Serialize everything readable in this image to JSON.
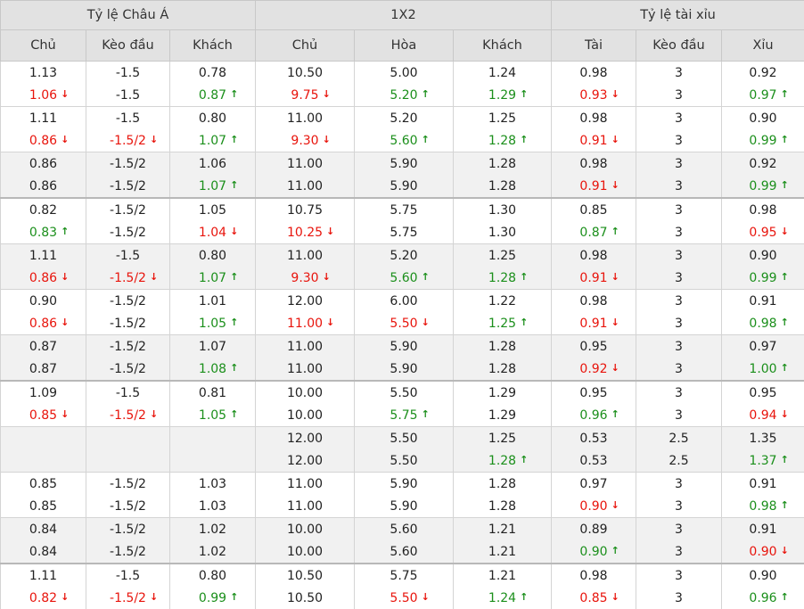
{
  "headers": {
    "groups": [
      "Tỷ lệ Châu Á",
      "1X2",
      "Tỷ lệ tài xỉu"
    ],
    "columns": [
      "Chủ",
      "Kèo đầu",
      "Khách",
      "Chủ",
      "Hòa",
      "Khách",
      "Tài",
      "Kèo đầu",
      "Xỉu"
    ]
  },
  "colors": {
    "red": "#e8140c",
    "green": "#1b8f1b",
    "up_icon": "arrow-up-icon",
    "down_icon": "arrow-down-icon"
  },
  "rows": [
    {
      "shade": false,
      "thick": false,
      "cells": [
        [
          {
            "t": "1.13"
          },
          {
            "t": "1.06",
            "a": "d"
          }
        ],
        [
          {
            "t": "-1.5"
          },
          {
            "t": "-1.5"
          }
        ],
        [
          {
            "t": "0.78"
          },
          {
            "t": "0.87",
            "a": "u"
          }
        ],
        [
          {
            "t": "10.50"
          },
          {
            "t": "9.75",
            "a": "d"
          }
        ],
        [
          {
            "t": "5.00"
          },
          {
            "t": "5.20",
            "a": "u"
          }
        ],
        [
          {
            "t": "1.24"
          },
          {
            "t": "1.29",
            "a": "u"
          }
        ],
        [
          {
            "t": "0.98"
          },
          {
            "t": "0.93",
            "a": "d"
          }
        ],
        [
          {
            "t": "3"
          },
          {
            "t": "3"
          }
        ],
        [
          {
            "t": "0.92"
          },
          {
            "t": "0.97",
            "a": "u"
          }
        ]
      ]
    },
    {
      "shade": false,
      "thick": false,
      "cells": [
        [
          {
            "t": "1.11"
          },
          {
            "t": "0.86",
            "a": "d"
          }
        ],
        [
          {
            "t": "-1.5"
          },
          {
            "t": "-1.5/2",
            "a": "d"
          }
        ],
        [
          {
            "t": "0.80"
          },
          {
            "t": "1.07",
            "a": "u"
          }
        ],
        [
          {
            "t": "11.00"
          },
          {
            "t": "9.30",
            "a": "d"
          }
        ],
        [
          {
            "t": "5.20"
          },
          {
            "t": "5.60",
            "a": "u"
          }
        ],
        [
          {
            "t": "1.25"
          },
          {
            "t": "1.28",
            "a": "u"
          }
        ],
        [
          {
            "t": "0.98"
          },
          {
            "t": "0.91",
            "a": "d"
          }
        ],
        [
          {
            "t": "3"
          },
          {
            "t": "3"
          }
        ],
        [
          {
            "t": "0.90"
          },
          {
            "t": "0.99",
            "a": "u"
          }
        ]
      ]
    },
    {
      "shade": true,
      "thick": false,
      "cells": [
        [
          {
            "t": "0.86"
          },
          {
            "t": "0.86"
          }
        ],
        [
          {
            "t": "-1.5/2"
          },
          {
            "t": "-1.5/2"
          }
        ],
        [
          {
            "t": "1.06"
          },
          {
            "t": "1.07",
            "a": "u"
          }
        ],
        [
          {
            "t": "11.00"
          },
          {
            "t": "11.00"
          }
        ],
        [
          {
            "t": "5.90"
          },
          {
            "t": "5.90"
          }
        ],
        [
          {
            "t": "1.28"
          },
          {
            "t": "1.28"
          }
        ],
        [
          {
            "t": "0.98"
          },
          {
            "t": "0.91",
            "a": "d"
          }
        ],
        [
          {
            "t": "3"
          },
          {
            "t": "3"
          }
        ],
        [
          {
            "t": "0.92"
          },
          {
            "t": "0.99",
            "a": "u"
          }
        ]
      ]
    },
    {
      "shade": false,
      "thick": true,
      "cells": [
        [
          {
            "t": "0.82"
          },
          {
            "t": "0.83",
            "a": "u"
          }
        ],
        [
          {
            "t": "-1.5/2"
          },
          {
            "t": "-1.5/2"
          }
        ],
        [
          {
            "t": "1.05"
          },
          {
            "t": "1.04",
            "a": "d"
          }
        ],
        [
          {
            "t": "10.75"
          },
          {
            "t": "10.25",
            "a": "d"
          }
        ],
        [
          {
            "t": "5.75"
          },
          {
            "t": "5.75"
          }
        ],
        [
          {
            "t": "1.30"
          },
          {
            "t": "1.30"
          }
        ],
        [
          {
            "t": "0.85"
          },
          {
            "t": "0.87",
            "a": "u"
          }
        ],
        [
          {
            "t": "3"
          },
          {
            "t": "3"
          }
        ],
        [
          {
            "t": "0.98"
          },
          {
            "t": "0.95",
            "a": "d"
          }
        ]
      ]
    },
    {
      "shade": true,
      "thick": false,
      "cells": [
        [
          {
            "t": "1.11"
          },
          {
            "t": "0.86",
            "a": "d"
          }
        ],
        [
          {
            "t": "-1.5"
          },
          {
            "t": "-1.5/2",
            "a": "d"
          }
        ],
        [
          {
            "t": "0.80"
          },
          {
            "t": "1.07",
            "a": "u"
          }
        ],
        [
          {
            "t": "11.00"
          },
          {
            "t": "9.30",
            "a": "d"
          }
        ],
        [
          {
            "t": "5.20"
          },
          {
            "t": "5.60",
            "a": "u"
          }
        ],
        [
          {
            "t": "1.25"
          },
          {
            "t": "1.28",
            "a": "u"
          }
        ],
        [
          {
            "t": "0.98"
          },
          {
            "t": "0.91",
            "a": "d"
          }
        ],
        [
          {
            "t": "3"
          },
          {
            "t": "3"
          }
        ],
        [
          {
            "t": "0.90"
          },
          {
            "t": "0.99",
            "a": "u"
          }
        ]
      ]
    },
    {
      "shade": false,
      "thick": false,
      "cells": [
        [
          {
            "t": "0.90"
          },
          {
            "t": "0.86",
            "a": "d"
          }
        ],
        [
          {
            "t": "-1.5/2"
          },
          {
            "t": "-1.5/2"
          }
        ],
        [
          {
            "t": "1.01"
          },
          {
            "t": "1.05",
            "a": "u"
          }
        ],
        [
          {
            "t": "12.00"
          },
          {
            "t": "11.00",
            "a": "d"
          }
        ],
        [
          {
            "t": "6.00"
          },
          {
            "t": "5.50",
            "a": "d"
          }
        ],
        [
          {
            "t": "1.22"
          },
          {
            "t": "1.25",
            "a": "u"
          }
        ],
        [
          {
            "t": "0.98"
          },
          {
            "t": "0.91",
            "a": "d"
          }
        ],
        [
          {
            "t": "3"
          },
          {
            "t": "3"
          }
        ],
        [
          {
            "t": "0.91"
          },
          {
            "t": "0.98",
            "a": "u"
          }
        ]
      ]
    },
    {
      "shade": true,
      "thick": false,
      "cells": [
        [
          {
            "t": "0.87"
          },
          {
            "t": "0.87"
          }
        ],
        [
          {
            "t": "-1.5/2"
          },
          {
            "t": "-1.5/2"
          }
        ],
        [
          {
            "t": "1.07"
          },
          {
            "t": "1.08",
            "a": "u"
          }
        ],
        [
          {
            "t": "11.00"
          },
          {
            "t": "11.00"
          }
        ],
        [
          {
            "t": "5.90"
          },
          {
            "t": "5.90"
          }
        ],
        [
          {
            "t": "1.28"
          },
          {
            "t": "1.28"
          }
        ],
        [
          {
            "t": "0.95"
          },
          {
            "t": "0.92",
            "a": "d"
          }
        ],
        [
          {
            "t": "3"
          },
          {
            "t": "3"
          }
        ],
        [
          {
            "t": "0.97"
          },
          {
            "t": "1.00",
            "a": "u"
          }
        ]
      ]
    },
    {
      "shade": false,
      "thick": true,
      "cells": [
        [
          {
            "t": "1.09"
          },
          {
            "t": "0.85",
            "a": "d"
          }
        ],
        [
          {
            "t": "-1.5"
          },
          {
            "t": "-1.5/2",
            "a": "d"
          }
        ],
        [
          {
            "t": "0.81"
          },
          {
            "t": "1.05",
            "a": "u"
          }
        ],
        [
          {
            "t": "10.00"
          },
          {
            "t": "10.00"
          }
        ],
        [
          {
            "t": "5.50"
          },
          {
            "t": "5.75",
            "a": "u"
          }
        ],
        [
          {
            "t": "1.29"
          },
          {
            "t": "1.29"
          }
        ],
        [
          {
            "t": "0.95"
          },
          {
            "t": "0.96",
            "a": "u"
          }
        ],
        [
          {
            "t": "3"
          },
          {
            "t": "3"
          }
        ],
        [
          {
            "t": "0.95"
          },
          {
            "t": "0.94",
            "a": "d"
          }
        ]
      ]
    },
    {
      "shade": true,
      "thick": false,
      "cells": [
        [
          {
            "t": ""
          },
          {
            "t": ""
          }
        ],
        [
          {
            "t": ""
          },
          {
            "t": ""
          }
        ],
        [
          {
            "t": ""
          },
          {
            "t": ""
          }
        ],
        [
          {
            "t": "12.00"
          },
          {
            "t": "12.00"
          }
        ],
        [
          {
            "t": "5.50"
          },
          {
            "t": "5.50"
          }
        ],
        [
          {
            "t": "1.25"
          },
          {
            "t": "1.28",
            "a": "u"
          }
        ],
        [
          {
            "t": "0.53"
          },
          {
            "t": "0.53"
          }
        ],
        [
          {
            "t": "2.5"
          },
          {
            "t": "2.5"
          }
        ],
        [
          {
            "t": "1.35"
          },
          {
            "t": "1.37",
            "a": "u"
          }
        ]
      ]
    },
    {
      "shade": false,
      "thick": false,
      "cells": [
        [
          {
            "t": "0.85"
          },
          {
            "t": "0.85"
          }
        ],
        [
          {
            "t": "-1.5/2"
          },
          {
            "t": "-1.5/2"
          }
        ],
        [
          {
            "t": "1.03"
          },
          {
            "t": "1.03"
          }
        ],
        [
          {
            "t": "11.00"
          },
          {
            "t": "11.00"
          }
        ],
        [
          {
            "t": "5.90"
          },
          {
            "t": "5.90"
          }
        ],
        [
          {
            "t": "1.28"
          },
          {
            "t": "1.28"
          }
        ],
        [
          {
            "t": "0.97"
          },
          {
            "t": "0.90",
            "a": "d"
          }
        ],
        [
          {
            "t": "3"
          },
          {
            "t": "3"
          }
        ],
        [
          {
            "t": "0.91"
          },
          {
            "t": "0.98",
            "a": "u"
          }
        ]
      ]
    },
    {
      "shade": true,
      "thick": false,
      "cells": [
        [
          {
            "t": "0.84"
          },
          {
            "t": "0.84"
          }
        ],
        [
          {
            "t": "-1.5/2"
          },
          {
            "t": "-1.5/2"
          }
        ],
        [
          {
            "t": "1.02"
          },
          {
            "t": "1.02"
          }
        ],
        [
          {
            "t": "10.00"
          },
          {
            "t": "10.00"
          }
        ],
        [
          {
            "t": "5.60"
          },
          {
            "t": "5.60"
          }
        ],
        [
          {
            "t": "1.21"
          },
          {
            "t": "1.21"
          }
        ],
        [
          {
            "t": "0.89"
          },
          {
            "t": "0.90",
            "a": "u"
          }
        ],
        [
          {
            "t": "3"
          },
          {
            "t": "3"
          }
        ],
        [
          {
            "t": "0.91"
          },
          {
            "t": "0.90",
            "a": "d"
          }
        ]
      ]
    },
    {
      "shade": false,
      "thick": true,
      "cells": [
        [
          {
            "t": "1.11"
          },
          {
            "t": "0.82",
            "a": "d"
          }
        ],
        [
          {
            "t": "-1.5"
          },
          {
            "t": "-1.5/2",
            "a": "d"
          }
        ],
        [
          {
            "t": "0.80"
          },
          {
            "t": "0.99",
            "a": "u"
          }
        ],
        [
          {
            "t": "10.50"
          },
          {
            "t": "10.50"
          }
        ],
        [
          {
            "t": "5.75"
          },
          {
            "t": "5.50",
            "a": "d"
          }
        ],
        [
          {
            "t": "1.21"
          },
          {
            "t": "1.24",
            "a": "u"
          }
        ],
        [
          {
            "t": "0.98"
          },
          {
            "t": "0.85",
            "a": "d"
          }
        ],
        [
          {
            "t": "3"
          },
          {
            "t": "3"
          }
        ],
        [
          {
            "t": "0.90"
          },
          {
            "t": "0.96",
            "a": "u"
          }
        ]
      ]
    }
  ]
}
